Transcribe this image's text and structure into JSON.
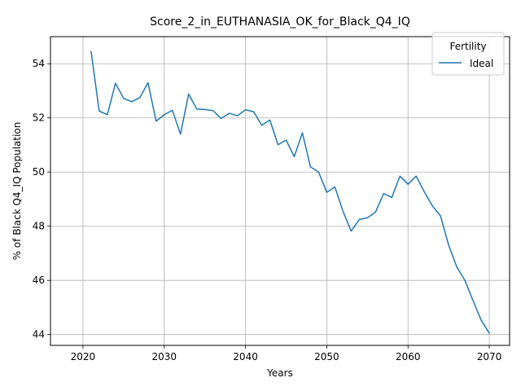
{
  "chart_data": {
    "type": "line",
    "title": "Score_2_in_EUTHANASIA_OK_for_Black_Q4_IQ",
    "xlabel": "Years",
    "ylabel": "% of Black Q4_IQ Population",
    "xlim": [
      2016,
      2072.5
    ],
    "ylim": [
      43.6,
      55
    ],
    "xticks": [
      2020,
      2030,
      2040,
      2050,
      2060,
      2070
    ],
    "yticks": [
      44,
      46,
      48,
      50,
      52,
      54
    ],
    "grid": true,
    "legend": {
      "title": "Fertility",
      "position": "top-right"
    },
    "series_color": "#1f77b4",
    "series": [
      {
        "name": "Ideal",
        "x": [
          2021,
          2022,
          2023,
          2024,
          2025,
          2026,
          2027,
          2028,
          2029,
          2030,
          2031,
          2032,
          2033,
          2034,
          2035,
          2036,
          2037,
          2038,
          2039,
          2040,
          2041,
          2042,
          2043,
          2044,
          2045,
          2046,
          2047,
          2048,
          2049,
          2050,
          2051,
          2052,
          2053,
          2054,
          2055,
          2056,
          2057,
          2058,
          2059,
          2060,
          2061,
          2062,
          2063,
          2064,
          2065,
          2066,
          2067,
          2068,
          2069,
          2070
        ],
        "y": [
          54.45,
          52.25,
          52.12,
          53.28,
          52.72,
          52.6,
          52.75,
          53.3,
          51.88,
          52.12,
          52.28,
          51.4,
          52.88,
          52.33,
          52.31,
          52.27,
          51.98,
          52.17,
          52.08,
          52.3,
          52.23,
          51.73,
          51.92,
          51.01,
          51.18,
          50.57,
          51.45,
          50.19,
          50.0,
          49.25,
          49.45,
          48.55,
          47.82,
          48.25,
          48.31,
          48.52,
          49.21,
          49.06,
          49.85,
          49.55,
          49.85,
          49.27,
          48.75,
          48.38,
          47.3,
          46.5,
          46.0,
          45.25,
          44.53,
          44.05
        ]
      }
    ]
  }
}
